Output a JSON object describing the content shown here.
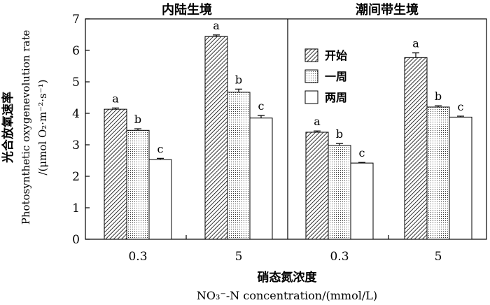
{
  "chart_data": {
    "type": "bar",
    "panels": [
      {
        "title": "内陆生境",
        "groups": [
          "0.3",
          "5"
        ],
        "series": [
          {
            "name": "开始",
            "values": [
              4.13,
              6.44
            ],
            "errors": [
              0.04,
              0.05
            ],
            "letters": [
              "a",
              "a"
            ]
          },
          {
            "name": "一周",
            "values": [
              3.46,
              4.67
            ],
            "errors": [
              0.05,
              0.1
            ],
            "letters": [
              "b",
              "b"
            ]
          },
          {
            "name": "两周",
            "values": [
              2.53,
              3.85
            ],
            "errors": [
              0.04,
              0.08
            ],
            "letters": [
              "c",
              "c"
            ]
          }
        ]
      },
      {
        "title": "潮间带生境",
        "groups": [
          "0.3",
          "5"
        ],
        "series": [
          {
            "name": "开始",
            "values": [
              3.4,
              5.77
            ],
            "errors": [
              0.04,
              0.15
            ],
            "letters": [
              "a",
              "a"
            ]
          },
          {
            "name": "一周",
            "values": [
              2.98,
              4.2
            ],
            "errors": [
              0.06,
              0.04
            ],
            "letters": [
              "b",
              "b"
            ]
          },
          {
            "name": "两周",
            "values": [
              2.42,
              3.88
            ],
            "errors": [
              0.02,
              0.03
            ],
            "letters": [
              "c",
              "c"
            ]
          }
        ]
      }
    ],
    "legend": [
      "开始",
      "一周",
      "两周"
    ],
    "legend_position": "upper-left of right panel",
    "ylabel_cn": "光合放氧速率",
    "ylabel_en": "Photosynthetic oxygenevolution rate",
    "yunit": "/(μmol O₂·m⁻²·s⁻¹)",
    "xlabel_cn": "硝态氮浓度",
    "xlabel_en": "NO₃⁻-N concentration/(mmol/L)",
    "ylim": [
      0,
      7
    ],
    "yticks": [
      "0",
      "1",
      "2",
      "3",
      "4",
      "5",
      "6",
      "7"
    ],
    "grid": false
  }
}
